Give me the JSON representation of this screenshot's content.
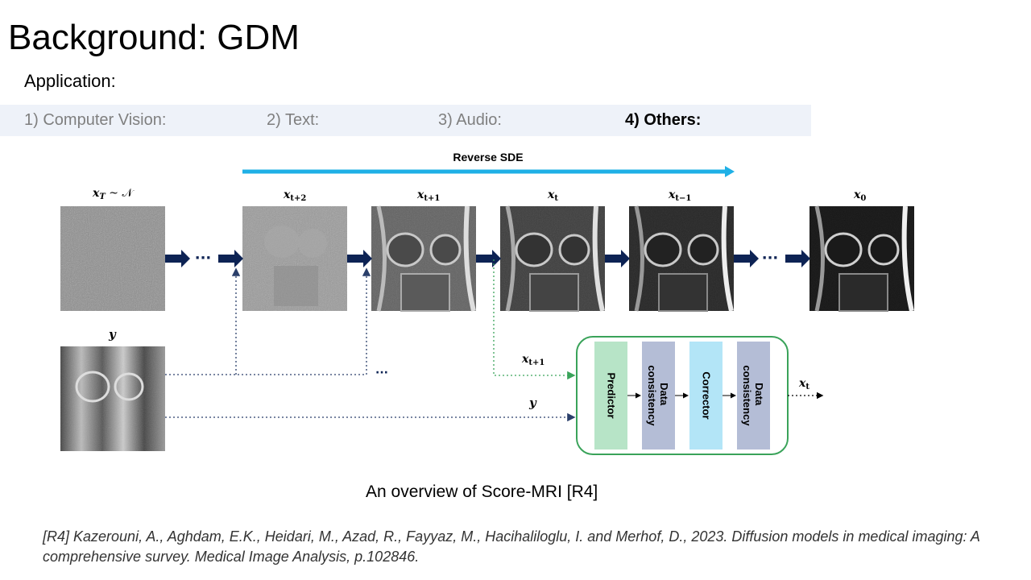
{
  "slide": {
    "title": "Background: GDM",
    "subtitle": "Application:",
    "tabs": [
      {
        "label": "1) Computer Vision:",
        "active": false
      },
      {
        "label": "2) Text:",
        "active": false
      },
      {
        "label": "3) Audio:",
        "active": false
      },
      {
        "label": "4) Others:",
        "active": true
      }
    ],
    "caption": "An overview of Score-MRI [R4]",
    "reference": "[R4] Kazerouni, A., Aghdam, E.K., Heidari, M., Azad, R., Fayyaz, M., Hacihaliloglu, I. and Merhof, D., 2023. Diffusion models in medical imaging: A comprehensive survey. Medical Image Analysis, p.102846."
  },
  "diagram": {
    "reverse_label": "Reverse SDE",
    "state_labels": {
      "xT": "x",
      "xT_sub": "T",
      "xT_dist": " ~ 𝒩",
      "xt2": "x",
      "xt2_sub": "t+2",
      "xt1": "x",
      "xt1_sub": "t+1",
      "xt": "x",
      "xt_sub": "t",
      "xtm1": "x",
      "xtm1_sub": "t−1",
      "x0": "x",
      "x0_sub": "0"
    },
    "measurement_label": "y",
    "ellipsis": "···",
    "ellipsis_lower": "···",
    "input_xt1": "x",
    "input_xt1_sub": "t+1",
    "input_y": "y",
    "output_xt": "x",
    "output_xt_sub": "t",
    "blocks": [
      {
        "label": "Predictor",
        "color": "#b7e4c7"
      },
      {
        "label": "Data consistency",
        "line1": "Data",
        "line2": "consistency",
        "color": "#b4bdd6"
      },
      {
        "label": "Corrector",
        "color": "#b3e5f7"
      },
      {
        "label": "Data consistency",
        "line1": "Data",
        "line2": "consistency",
        "color": "#b4bdd6"
      }
    ],
    "colors": {
      "reverse_arrow": "#1fb0e6",
      "flow_arrow": "#0d2354",
      "module_border": "#3aa35a",
      "green_dotted": "#3aa35a",
      "dark_dotted": "#2a3f6a"
    }
  }
}
